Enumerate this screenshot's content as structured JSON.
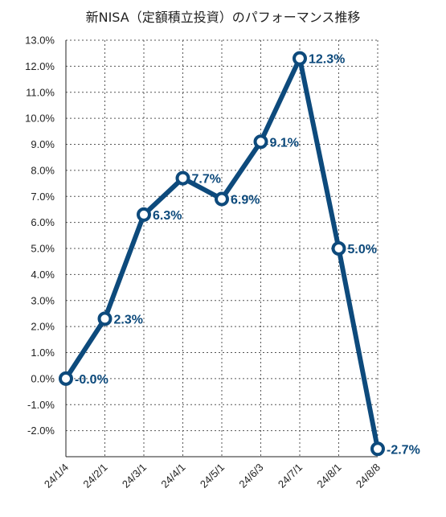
{
  "chart_data": {
    "type": "line",
    "title": "新NISA（定額積立投資）のパフォーマンス推移",
    "categories": [
      "24/1/4",
      "24/2/1",
      "24/3/1",
      "24/4/1",
      "24/5/1",
      "24/6/3",
      "24/7/1",
      "24/8/1",
      "24/8/8"
    ],
    "series": [
      {
        "values": [
          0.0,
          2.3,
          6.3,
          7.7,
          6.9,
          9.1,
          12.3,
          5.0,
          -2.7
        ],
        "labels": [
          "-0.0%",
          "2.3%",
          "6.3%",
          "7.7%",
          "6.9%",
          "9.1%",
          "12.3%",
          "5.0%",
          "-2.7%"
        ]
      }
    ],
    "ylim": [
      -3.0,
      13.0
    ],
    "yticks": [
      13,
      12,
      11,
      10,
      9,
      8,
      7,
      6,
      5,
      4,
      3,
      2,
      1,
      0,
      -1,
      -2
    ],
    "ytick_labels": [
      "13.0%",
      "12.0%",
      "11.0%",
      "10.0%",
      "9.0%",
      "8.0%",
      "7.0%",
      "6.0%",
      "5.0%",
      "4.0%",
      "3.0%",
      "2.0%",
      "1.0%",
      "0.0%",
      "-1.0%",
      "-2.0%"
    ],
    "grid": true,
    "colors": {
      "line": "#0d4a7c",
      "label": "#0d4a7c",
      "marker_fill": "#ffffff"
    }
  }
}
